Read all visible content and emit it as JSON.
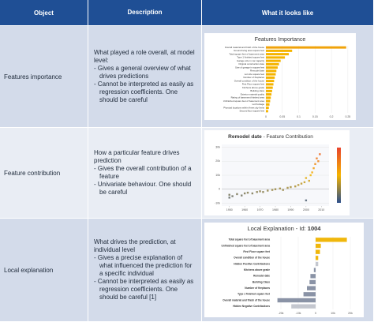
{
  "header": {
    "columns": [
      "Object",
      "Description",
      "What it looks like"
    ]
  },
  "rows": [
    {
      "object": "Features importance",
      "description": {
        "intro": "What played a role overall, at model level:",
        "bullets": [
          "- Gives a general overview of what drives predictions",
          "- Cannot be interpreted as easily as regression coefficients. One should be careful"
        ]
      },
      "figure": {
        "type": "barh",
        "title": "Features Importance",
        "categories": [
          "Overall material and finish of the house",
          "Ground living area square feet",
          "Total square feet of basement area",
          "Type 1 finished square feet",
          "Garage size in car capacity",
          "Original construction date",
          "Size of garage in square feet",
          "Remodel date",
          "Lot size square feet",
          "Number of fireplaces",
          "Overall condition of the house",
          "First Floor square feet",
          "Kitchens above grade",
          "Building class",
          "Exterior material quality",
          "Rating of basement finished area",
          "Unfinished square feet of basement area",
          "Lot frontage",
          "Physical locations within Ames city limits",
          "Second floor square feet"
        ],
        "values": [
          0.245,
          0.08,
          0.07,
          0.058,
          0.045,
          0.04,
          0.036,
          0.032,
          0.03,
          0.027,
          0.025,
          0.023,
          0.021,
          0.019,
          0.017,
          0.015,
          0.013,
          0.011,
          0.009,
          0.007
        ],
        "colors": [
          "#f0a30a",
          "#f5b400"
        ],
        "xlim": [
          0,
          0.26
        ],
        "xticks": [
          0,
          0.05,
          0.1,
          0.15,
          0.2,
          0.25
        ]
      }
    },
    {
      "object": "Feature contribution",
      "description": {
        "intro": "How a particular feature drives prediction",
        "bullets": [
          "- Gives the overall contribution of a feature",
          "- Univariate behaviour. One should be careful"
        ]
      },
      "figure": {
        "type": "scatter",
        "title_bold": "Remodel date",
        "title_rest": " - Feature Contribution",
        "x": [
          1950,
          1950,
          1952,
          1955,
          1958,
          1960,
          1962,
          1965,
          1968,
          1970,
          1972,
          1975,
          1978,
          1980,
          1983,
          1985,
          1988,
          1990,
          1993,
          1995,
          1997,
          1999,
          2000,
          2002,
          2003,
          2004,
          2005,
          2006,
          2007,
          2008,
          2009,
          2000
        ],
        "values": [
          -6000,
          -4000,
          -5000,
          -3500,
          -4500,
          -3000,
          -2500,
          -3000,
          -2000,
          -1500,
          -2000,
          -1000,
          -500,
          0,
          500,
          -500,
          1000,
          1500,
          2000,
          3000,
          4000,
          5000,
          8000,
          6000,
          10000,
          12000,
          15000,
          18000,
          22000,
          20000,
          25000,
          -8000
        ],
        "color_scale": [
          "#2c4f8c",
          "#f5b400",
          "#e8432e"
        ],
        "xlim": [
          1945,
          2015
        ],
        "xticks": [
          1950,
          1960,
          1970,
          1980,
          1990,
          2000,
          2010
        ],
        "ylim": [
          -12000,
          32000
        ],
        "yticks": [
          {
            "value": -10000,
            "label": "-10k"
          },
          0,
          {
            "value": 10000,
            "label": "10k"
          },
          {
            "value": 20000,
            "label": "20k"
          },
          {
            "value": 30000,
            "label": "30k"
          }
        ]
      }
    },
    {
      "object": "Local explanation",
      "description": {
        "intro": "What drives the prediction, at individual level",
        "bullets": [
          "- Gives a precise explanation of what influenced the prediction for a specific individual",
          "- Cannot be interpreted as easily as regression coefficients. One should be careful [1]"
        ]
      },
      "figure": {
        "type": "barh",
        "title": "Local Explanation - Id: ",
        "title_bold": "1004",
        "categories": [
          "Total square feet of basement area",
          "Unfinished square feet of basement area",
          "First Floor square feet",
          "Overall condition of the house",
          "Hidden Positive Contributions",
          "Kitchens above grade",
          "Remodel date",
          "Building Class",
          "Number of fireplaces",
          "Type 1 finished square feet",
          "Overall material and finish of the house",
          "Hidden Negative Contributions"
        ],
        "values": [
          18000,
          3000,
          2500,
          1500,
          1500,
          -1000,
          -3000,
          -3500,
          -5000,
          -7000,
          -22000,
          -14000
        ],
        "colors": [
          "#f0b70c",
          "#f0b70c",
          "#f0b70c",
          "#f0b70c",
          "#c4c7cf",
          "#8a93a6",
          "#8a93a6",
          "#8a93a6",
          "#8a93a6",
          "#8a93a6",
          "#8a93a6",
          "#c4c7cf"
        ],
        "xlim": [
          -25000,
          25000
        ],
        "xticks": [
          {
            "value": -20000,
            "label": "-20k"
          },
          {
            "value": -10000,
            "label": "-10k"
          },
          0,
          {
            "value": 10000,
            "label": "10k"
          },
          {
            "value": 20000,
            "label": "20k"
          }
        ]
      }
    }
  ]
}
